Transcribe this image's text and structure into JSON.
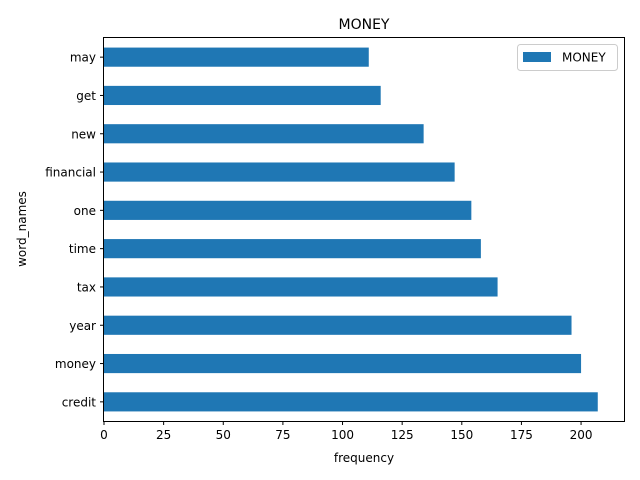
{
  "chart_data": {
    "type": "bar",
    "orientation": "horizontal",
    "title": "MONEY",
    "xlabel": "frequency",
    "ylabel": "word_names",
    "categories": [
      "credit",
      "money",
      "year",
      "tax",
      "time",
      "one",
      "financial",
      "new",
      "get",
      "may"
    ],
    "series": [
      {
        "name": "MONEY",
        "values": [
          207,
          200,
          196,
          165,
          158,
          154,
          147,
          134,
          116,
          111
        ],
        "color": "#1f77b4"
      }
    ],
    "xlim": [
      0,
      218
    ],
    "xticks": [
      0,
      25,
      50,
      75,
      100,
      125,
      150,
      175,
      200
    ],
    "grid": false,
    "legend_position": "top-right"
  }
}
